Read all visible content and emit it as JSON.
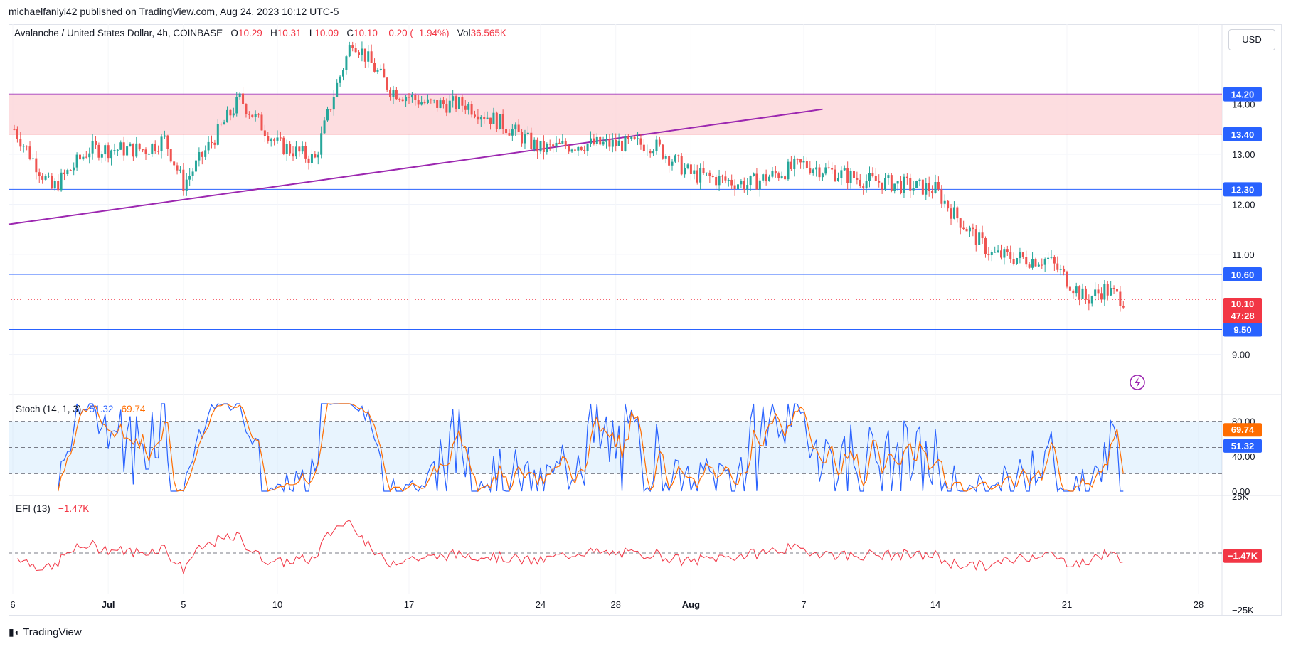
{
  "header": {
    "publisher": "michaelfaniyi42 published on TradingView.com, Aug 24, 2023 10:12 UTC-5"
  },
  "symbol": {
    "name": "Avalanche / United States Dollar, 4h, COINBASE",
    "open_label": "O",
    "open": "10.29",
    "high_label": "H",
    "high": "10.31",
    "low_label": "L",
    "low": "10.09",
    "close_label": "C",
    "close": "10.10",
    "change": "−0.20 (−1.94%)",
    "vol_label": "Vol",
    "vol": "36.565K"
  },
  "currency_button": "USD",
  "countdown": "47:28",
  "brand": {
    "name": "TradingView"
  },
  "colors": {
    "up": "#26a69a",
    "down": "#ef5350",
    "zone": "#fcd5d8",
    "level": "#2962ff",
    "trend": "#9c27b0",
    "stoch_k": "#2962ff",
    "stoch_d": "#ff6d00",
    "efi": "#f23645"
  },
  "chart_data": [
    {
      "type": "candlestick",
      "title": "Avalanche / United States Dollar, 4h, COINBASE",
      "ylim": [
        8.2,
        15.6
      ],
      "y_ticks": [
        "9.00",
        "11.00",
        "12.00",
        "13.00",
        "14.00"
      ],
      "x_ticks": [
        "6",
        "Jul",
        "5",
        "10",
        "17",
        "24",
        "28",
        "Aug",
        "7",
        "14",
        "21",
        "28"
      ],
      "anchor_points": [
        [
          "Jun 26",
          13.5
        ],
        [
          "Jun 28",
          12.3
        ],
        [
          "Jun 30",
          13.1
        ],
        [
          "Jul 3",
          13.1
        ],
        [
          "Jul 4",
          13.3
        ],
        [
          "Jul 5",
          12.4
        ],
        [
          "Jul 8",
          14.1
        ],
        [
          "Jul 10",
          13.2
        ],
        [
          "Jul 12",
          12.9
        ],
        [
          "Jul 13",
          14.2
        ],
        [
          "Jul 14",
          15.3
        ],
        [
          "Jul 16",
          14.3
        ],
        [
          "Jul 18",
          14.0
        ],
        [
          "Jul 20",
          14.0
        ],
        [
          "Jul 22",
          13.6
        ],
        [
          "Jul 24",
          13.1
        ],
        [
          "Jul 26",
          13.2
        ],
        [
          "Jul 28",
          13.2
        ],
        [
          "Jul 30",
          13.2
        ],
        [
          "Aug 1",
          12.6
        ],
        [
          "Aug 4",
          12.4
        ],
        [
          "Aug 7",
          12.8
        ],
        [
          "Aug 10",
          12.5
        ],
        [
          "Aug 14",
          12.3
        ],
        [
          "Aug 15",
          11.8
        ],
        [
          "Aug 17",
          11.0
        ],
        [
          "Aug 19",
          10.9
        ],
        [
          "Aug 20",
          10.9
        ],
        [
          "Aug 21",
          10.5
        ],
        [
          "Aug 22",
          10.1
        ],
        [
          "Aug 23",
          10.3
        ],
        [
          "Aug 24",
          10.1
        ]
      ],
      "resistance_zone": {
        "low": 13.4,
        "high": 14.2
      },
      "horizontal_levels": [
        12.3,
        10.6,
        9.5
      ],
      "level_labels": [
        "14.20",
        "13.40",
        "12.30",
        "10.60",
        "9.50"
      ],
      "trendline": {
        "from": [
          "Jun 26",
          11.6
        ],
        "to": [
          "Aug 8",
          13.9
        ]
      },
      "last_price": "10.10"
    },
    {
      "type": "line",
      "title": "Stoch (14, 1, 3)",
      "series": [
        {
          "name": "%K",
          "value": "51.32"
        },
        {
          "name": "%D",
          "value": "69.74"
        }
      ],
      "ylim": [
        0,
        100
      ],
      "y_ticks": [
        "0.00",
        "40.00",
        "80.00"
      ],
      "bands": [
        80,
        50,
        20
      ]
    },
    {
      "type": "line",
      "title": "EFI (13)",
      "series": [
        {
          "name": "EFI",
          "value": "−1.47K"
        }
      ],
      "y_ticks": [
        "25K",
        "−25K"
      ],
      "last_value": "−1.47K"
    }
  ]
}
